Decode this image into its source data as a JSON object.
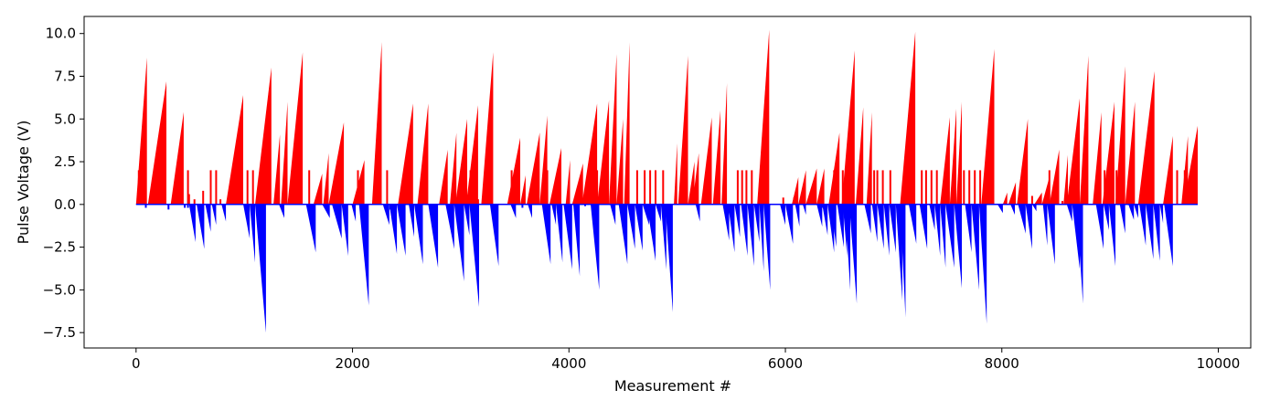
{
  "chart_data": {
    "type": "bar",
    "title": "",
    "xlabel": "Measurement #",
    "ylabel": "Pulse Voltage (V)",
    "xlim": [
      -480,
      10300
    ],
    "ylim": [
      -8.4,
      11.0
    ],
    "xticks": [
      0,
      2000,
      4000,
      6000,
      8000,
      10000
    ],
    "yticks": [
      -7.5,
      -5.0,
      -2.5,
      0.0,
      2.5,
      5.0,
      7.5,
      10.0
    ],
    "ytick_labels": [
      "−7.5",
      "−5.0",
      "−2.5",
      "0.0",
      "2.5",
      "5.0",
      "7.5",
      "10.0"
    ],
    "grid": false,
    "positive_color": "#ff0000",
    "negative_color": "#0000ff",
    "positive_ramps": [
      [
        0,
        100,
        8.6
      ],
      [
        110,
        280,
        7.2
      ],
      [
        320,
        440,
        5.4
      ],
      [
        830,
        990,
        6.4
      ],
      [
        1100,
        1250,
        8.0
      ],
      [
        1270,
        1330,
        4.1
      ],
      [
        1340,
        1400,
        6.0
      ],
      [
        1400,
        1540,
        8.9
      ],
      [
        1640,
        1720,
        1.8
      ],
      [
        1730,
        1780,
        3.0
      ],
      [
        1780,
        1920,
        4.8
      ],
      [
        2000,
        2110,
        2.6
      ],
      [
        2180,
        2270,
        9.5
      ],
      [
        2420,
        2560,
        5.9
      ],
      [
        2600,
        2700,
        5.9
      ],
      [
        2800,
        2880,
        3.2
      ],
      [
        2900,
        2960,
        4.2
      ],
      [
        2950,
        3060,
        5.0
      ],
      [
        3050,
        3160,
        5.8
      ],
      [
        3190,
        3300,
        8.9
      ],
      [
        3430,
        3550,
        3.9
      ],
      [
        3550,
        3600,
        1.7
      ],
      [
        3610,
        3730,
        4.2
      ],
      [
        3730,
        3800,
        5.2
      ],
      [
        3820,
        3930,
        3.3
      ],
      [
        3970,
        4010,
        2.6
      ],
      [
        4030,
        4130,
        2.4
      ],
      [
        4120,
        4260,
        5.9
      ],
      [
        4260,
        4370,
        6.1
      ],
      [
        4370,
        4440,
        8.8
      ],
      [
        4440,
        4500,
        5.0
      ],
      [
        4510,
        4560,
        9.5
      ],
      [
        4970,
        5000,
        3.6
      ],
      [
        5010,
        5100,
        8.7
      ],
      [
        5100,
        5160,
        2.5
      ],
      [
        5140,
        5200,
        3.0
      ],
      [
        5220,
        5320,
        5.1
      ],
      [
        5330,
        5400,
        5.5
      ],
      [
        5410,
        5460,
        7.1
      ],
      [
        5740,
        5850,
        10.2
      ],
      [
        6060,
        6120,
        1.6
      ],
      [
        6120,
        6190,
        2.0
      ],
      [
        6190,
        6290,
        2.1
      ],
      [
        6290,
        6360,
        2.1
      ],
      [
        6400,
        6500,
        4.2
      ],
      [
        6520,
        6640,
        9.0
      ],
      [
        6650,
        6720,
        5.7
      ],
      [
        6750,
        6800,
        5.4
      ],
      [
        7060,
        7200,
        10.1
      ],
      [
        7430,
        7520,
        5.1
      ],
      [
        7520,
        7580,
        5.6
      ],
      [
        7580,
        7630,
        6.0
      ],
      [
        7810,
        7930,
        9.1
      ],
      [
        8010,
        8050,
        0.7
      ],
      [
        8060,
        8130,
        1.3
      ],
      [
        8140,
        8240,
        5.0
      ],
      [
        8300,
        8370,
        0.7
      ],
      [
        8370,
        8440,
        1.6
      ],
      [
        8440,
        8530,
        3.2
      ],
      [
        8570,
        8610,
        2.9
      ],
      [
        8600,
        8720,
        6.2
      ],
      [
        8720,
        8800,
        8.7
      ],
      [
        8840,
        8920,
        5.4
      ],
      [
        8930,
        9040,
        6.0
      ],
      [
        9050,
        9140,
        8.1
      ],
      [
        9140,
        9230,
        6.0
      ],
      [
        9260,
        9410,
        7.8
      ],
      [
        9490,
        9580,
        4.0
      ],
      [
        9660,
        9720,
        4.0
      ],
      [
        9680,
        9810,
        4.6
      ]
    ],
    "positive_spikes": [
      [
        25,
        2.0
      ],
      [
        480,
        2.0
      ],
      [
        490,
        0.6
      ],
      [
        540,
        0.3
      ],
      [
        620,
        0.8
      ],
      [
        690,
        2.0
      ],
      [
        740,
        2.0
      ],
      [
        780,
        0.3
      ],
      [
        1030,
        2.0
      ],
      [
        1080,
        2.0
      ],
      [
        1600,
        2.0
      ],
      [
        2050,
        2.0
      ],
      [
        2320,
        2.0
      ],
      [
        2500,
        0.3
      ],
      [
        3090,
        2.0
      ],
      [
        3160,
        0.3
      ],
      [
        3470,
        2.0
      ],
      [
        3800,
        2.0
      ],
      [
        3870,
        0.5
      ],
      [
        4260,
        2.0
      ],
      [
        4630,
        2.0
      ],
      [
        4700,
        2.0
      ],
      [
        4750,
        2.0
      ],
      [
        4800,
        2.0
      ],
      [
        4870,
        2.0
      ],
      [
        5560,
        2.0
      ],
      [
        5600,
        2.0
      ],
      [
        5640,
        2.0
      ],
      [
        5690,
        2.0
      ],
      [
        5980,
        0.4
      ],
      [
        6080,
        0.4
      ],
      [
        6450,
        2.0
      ],
      [
        6530,
        2.0
      ],
      [
        6820,
        2.0
      ],
      [
        6850,
        2.0
      ],
      [
        6900,
        2.0
      ],
      [
        6970,
        2.0
      ],
      [
        7260,
        2.0
      ],
      [
        7300,
        2.0
      ],
      [
        7350,
        2.0
      ],
      [
        7400,
        2.0
      ],
      [
        7650,
        2.0
      ],
      [
        7700,
        2.0
      ],
      [
        7750,
        2.0
      ],
      [
        7800,
        2.0
      ],
      [
        8280,
        0.5
      ],
      [
        8440,
        2.0
      ],
      [
        8560,
        0.2
      ],
      [
        8890,
        2.0
      ],
      [
        8950,
        2.0
      ],
      [
        9000,
        2.0
      ],
      [
        9060,
        2.0
      ],
      [
        9620,
        2.0
      ],
      [
        9690,
        2.0
      ]
    ],
    "negative_ramps": [
      [
        490,
        550,
        -2.2
      ],
      [
        560,
        630,
        -2.6
      ],
      [
        640,
        690,
        -1.6
      ],
      [
        700,
        740,
        -1.2
      ],
      [
        790,
        830,
        -1.0
      ],
      [
        990,
        1050,
        -2.0
      ],
      [
        1050,
        1100,
        -3.4
      ],
      [
        1100,
        1200,
        -7.5
      ],
      [
        1320,
        1370,
        -0.8
      ],
      [
        1570,
        1660,
        -2.8
      ],
      [
        1720,
        1790,
        -0.8
      ],
      [
        1810,
        1900,
        -2.0
      ],
      [
        1900,
        1960,
        -3.0
      ],
      [
        1990,
        2030,
        -1.0
      ],
      [
        2060,
        2150,
        -5.9
      ],
      [
        2280,
        2340,
        -1.2
      ],
      [
        2340,
        2410,
        -2.9
      ],
      [
        2410,
        2490,
        -3.0
      ],
      [
        2520,
        2570,
        -1.9
      ],
      [
        2570,
        2650,
        -3.5
      ],
      [
        2700,
        2790,
        -3.7
      ],
      [
        2860,
        2940,
        -2.6
      ],
      [
        2940,
        3030,
        -4.5
      ],
      [
        3030,
        3080,
        -1.8
      ],
      [
        3080,
        3170,
        -6.0
      ],
      [
        3270,
        3350,
        -3.6
      ],
      [
        3460,
        3510,
        -0.8
      ],
      [
        3620,
        3660,
        -0.8
      ],
      [
        3750,
        3830,
        -3.5
      ],
      [
        3840,
        3880,
        -1.2
      ],
      [
        3880,
        3940,
        -3.4
      ],
      [
        3950,
        4030,
        -3.8
      ],
      [
        4040,
        4100,
        -4.2
      ],
      [
        4200,
        4280,
        -5.0
      ],
      [
        4380,
        4430,
        -1.2
      ],
      [
        4460,
        4540,
        -3.5
      ],
      [
        4540,
        4610,
        -2.6
      ],
      [
        4610,
        4680,
        -2.7
      ],
      [
        4680,
        4740,
        -1.2
      ],
      [
        4720,
        4800,
        -3.3
      ],
      [
        4800,
        4850,
        -1.0
      ],
      [
        4850,
        4900,
        -3.8
      ],
      [
        4890,
        4960,
        -6.3
      ],
      [
        5170,
        5210,
        -1.0
      ],
      [
        5420,
        5480,
        -2.1
      ],
      [
        5470,
        5530,
        -2.8
      ],
      [
        5530,
        5580,
        -1.9
      ],
      [
        5590,
        5650,
        -3.0
      ],
      [
        5650,
        5710,
        -3.6
      ],
      [
        5710,
        5760,
        -2.2
      ],
      [
        5760,
        5800,
        -3.9
      ],
      [
        5800,
        5860,
        -5.0
      ],
      [
        5950,
        6000,
        -1.2
      ],
      [
        6000,
        6070,
        -2.3
      ],
      [
        6090,
        6130,
        -1.3
      ],
      [
        6160,
        6190,
        -0.6
      ],
      [
        6290,
        6340,
        -1.3
      ],
      [
        6340,
        6390,
        -1.8
      ],
      [
        6390,
        6450,
        -2.8
      ],
      [
        6420,
        6470,
        -2.5
      ],
      [
        6480,
        6540,
        -2.5
      ],
      [
        6530,
        6570,
        -3.0
      ],
      [
        6550,
        6600,
        -5.0
      ],
      [
        6590,
        6660,
        -5.8
      ],
      [
        6730,
        6790,
        -1.7
      ],
      [
        6800,
        6850,
        -2.2
      ],
      [
        6850,
        6910,
        -2.6
      ],
      [
        6910,
        6960,
        -3.0
      ],
      [
        6960,
        7020,
        -2.8
      ],
      [
        7020,
        7080,
        -5.6
      ],
      [
        7060,
        7110,
        -6.6
      ],
      [
        7140,
        7210,
        -2.3
      ],
      [
        7240,
        7310,
        -2.6
      ],
      [
        7330,
        7380,
        -1.5
      ],
      [
        7380,
        7430,
        -3.0
      ],
      [
        7430,
        7480,
        -3.7
      ],
      [
        7480,
        7560,
        -3.7
      ],
      [
        7560,
        7630,
        -4.9
      ],
      [
        7660,
        7720,
        -2.8
      ],
      [
        7720,
        7790,
        -5.0
      ],
      [
        7790,
        7860,
        -7.0
      ],
      [
        7960,
        8010,
        -0.5
      ],
      [
        8080,
        8120,
        -0.6
      ],
      [
        8150,
        8220,
        -1.7
      ],
      [
        8220,
        8280,
        -2.6
      ],
      [
        8280,
        8320,
        -0.4
      ],
      [
        8380,
        8420,
        -2.4
      ],
      [
        8420,
        8490,
        -3.5
      ],
      [
        8600,
        8650,
        -1.0
      ],
      [
        8650,
        8720,
        -3.8
      ],
      [
        8690,
        8750,
        -5.8
      ],
      [
        8870,
        8940,
        -2.6
      ],
      [
        8940,
        8990,
        -1.5
      ],
      [
        8990,
        9050,
        -3.6
      ],
      [
        9090,
        9140,
        -1.7
      ],
      [
        9170,
        9220,
        -0.9
      ],
      [
        9220,
        9260,
        -0.8
      ],
      [
        9270,
        9330,
        -2.4
      ],
      [
        9330,
        9400,
        -3.2
      ],
      [
        9400,
        9460,
        -3.3
      ],
      [
        9460,
        9490,
        -1.1
      ],
      [
        9500,
        9580,
        -3.6
      ]
    ],
    "negative_spikes": [
      [
        90,
        -0.2
      ],
      [
        300,
        -0.3
      ],
      [
        450,
        -0.2
      ],
      [
        480,
        -0.2
      ],
      [
        2350,
        -0.3
      ],
      [
        3000,
        -0.1
      ],
      [
        3570,
        -0.2
      ],
      [
        4150,
        -0.1
      ],
      [
        6340,
        -0.2
      ]
    ]
  }
}
